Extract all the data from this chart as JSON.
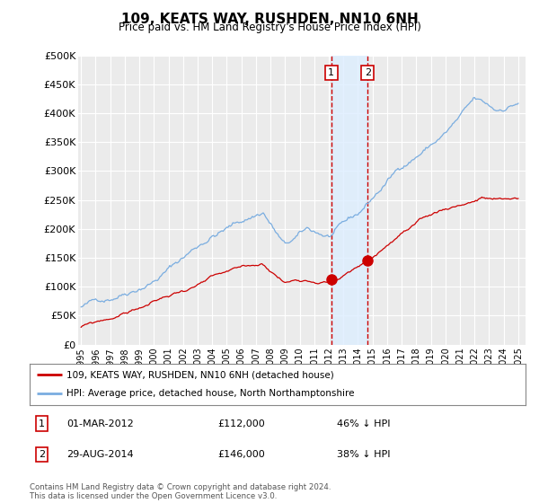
{
  "title": "109, KEATS WAY, RUSHDEN, NN10 6NH",
  "subtitle": "Price paid vs. HM Land Registry's House Price Index (HPI)",
  "ylabel_ticks": [
    "£0",
    "£50K",
    "£100K",
    "£150K",
    "£200K",
    "£250K",
    "£300K",
    "£350K",
    "£400K",
    "£450K",
    "£500K"
  ],
  "ytick_values": [
    0,
    50000,
    100000,
    150000,
    200000,
    250000,
    300000,
    350000,
    400000,
    450000,
    500000
  ],
  "ylim": [
    0,
    500000
  ],
  "xlim_start": 1994.8,
  "xlim_end": 2025.5,
  "background_color": "#ffffff",
  "plot_bg_color": "#ebebeb",
  "grid_color": "#ffffff",
  "hpi_color": "#7aade0",
  "price_color": "#cc0000",
  "annotation_bg": "#ddeeff",
  "annotation_border": "#cc0000",
  "transaction1": {
    "label": "1",
    "date": "01-MAR-2012",
    "price": 112000,
    "pct": "46%",
    "x": 2012.17
  },
  "transaction2": {
    "label": "2",
    "date": "29-AUG-2014",
    "price": 146000,
    "pct": "38%",
    "x": 2014.67
  },
  "legend_label_red": "109, KEATS WAY, RUSHDEN, NN10 6NH (detached house)",
  "legend_label_blue": "HPI: Average price, detached house, North Northamptonshire",
  "footer": "Contains HM Land Registry data © Crown copyright and database right 2024.\nThis data is licensed under the Open Government Licence v3.0.",
  "xtick_years": [
    1995,
    1996,
    1997,
    1998,
    1999,
    2000,
    2001,
    2002,
    2003,
    2004,
    2005,
    2006,
    2007,
    2008,
    2009,
    2010,
    2011,
    2012,
    2013,
    2014,
    2015,
    2016,
    2017,
    2018,
    2019,
    2020,
    2021,
    2022,
    2023,
    2024,
    2025
  ]
}
